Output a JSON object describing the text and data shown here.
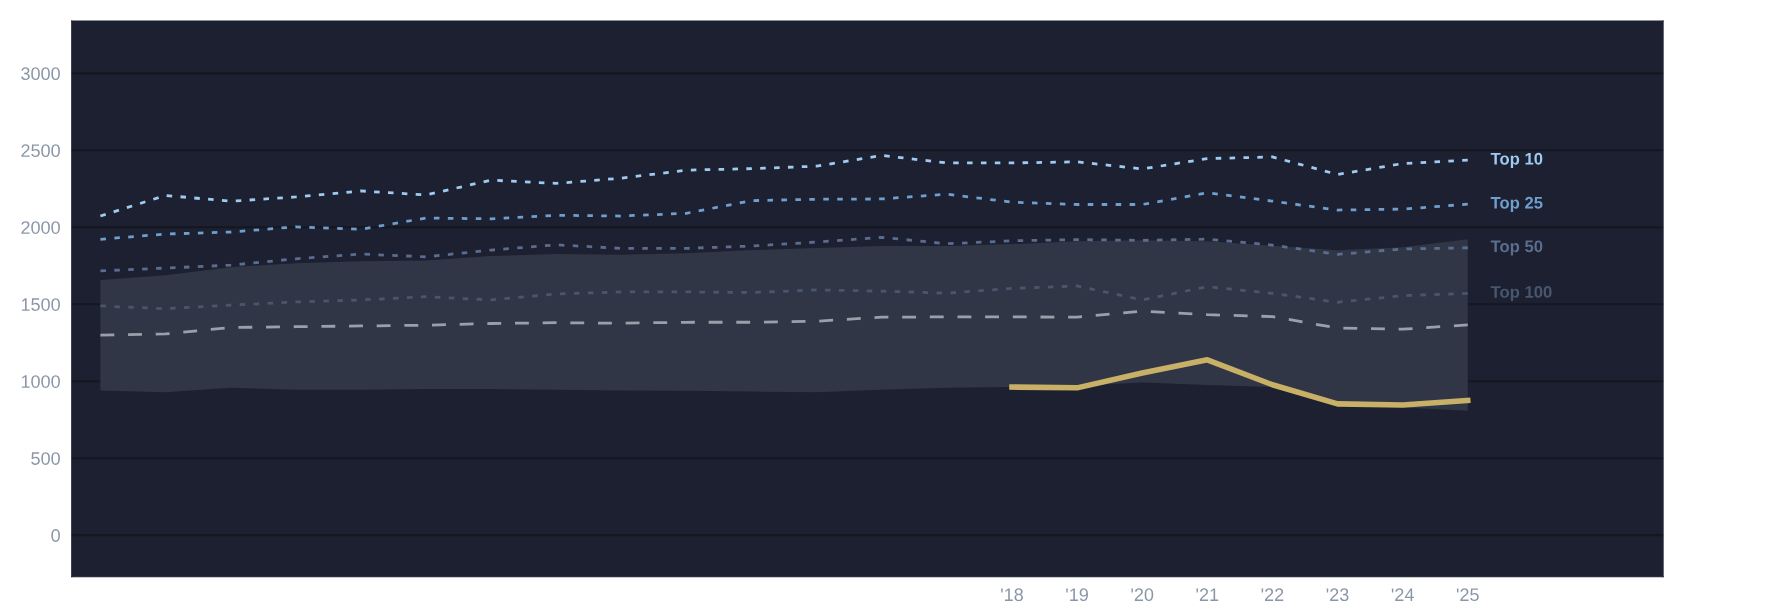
{
  "chart_data": {
    "type": "line",
    "x": [
      2004,
      2005,
      2006,
      2007,
      2008,
      2009,
      2010,
      2011,
      2012,
      2013,
      2014,
      2015,
      2016,
      2017,
      2018,
      2019,
      2020,
      2021,
      2022,
      2023,
      2024,
      2025
    ],
    "xlim": [
      2003.56,
      2028
    ],
    "xticks": [
      {
        "value": 2018,
        "label": "'18"
      },
      {
        "value": 2019,
        "label": "'19"
      },
      {
        "value": 2020,
        "label": "'20"
      },
      {
        "value": 2021,
        "label": "'21"
      },
      {
        "value": 2022,
        "label": "'22"
      },
      {
        "value": 2023,
        "label": "'23"
      },
      {
        "value": 2024,
        "label": "'24"
      },
      {
        "value": 2025,
        "label": "'25"
      }
    ],
    "ylim": [
      -270,
      3340
    ],
    "yticks": [
      0,
      500,
      1000,
      1500,
      2000,
      2500,
      3000
    ],
    "grid": "y",
    "series": [
      {
        "color": "#9aa0aa",
        "line_style": "dashed",
        "values": [
          1300,
          1307,
          1349,
          1354,
          1359,
          1364,
          1375,
          1380,
          1377,
          1383,
          1383,
          1390,
          1416,
          1418,
          1418,
          1416,
          1455,
          1432,
          1420,
          1345,
          1338,
          1366
        ],
        "lower": [
          939,
          929,
          957,
          944,
          944,
          949,
          949,
          944,
          939,
          938,
          933,
          929,
          944,
          957,
          962,
          970,
          991,
          975,
          962,
          870,
          830,
          808
        ],
        "upper": [
          1657,
          1689,
          1741,
          1767,
          1779,
          1785,
          1813,
          1826,
          1822,
          1831,
          1852,
          1865,
          1878,
          1878,
          1891,
          1909,
          1915,
          1909,
          1880,
          1850,
          1870,
          1923
        ]
      },
      {
        "name": "Top 100",
        "color": "#48566e",
        "line_style": "dotted",
        "values": [
          1489,
          1471,
          1494,
          1515,
          1528,
          1549,
          1528,
          1567,
          1580,
          1580,
          1576,
          1593,
          1585,
          1572,
          1603,
          1619,
          1528,
          1614,
          1571,
          1513,
          1556,
          1571
        ]
      },
      {
        "name": "Top 50",
        "color": "#5a6d8e",
        "line_style": "dotted",
        "values": [
          1717,
          1735,
          1754,
          1795,
          1826,
          1808,
          1852,
          1886,
          1863,
          1863,
          1878,
          1904,
          1935,
          1893,
          1912,
          1920,
          1915,
          1923,
          1884,
          1824,
          1859,
          1867
        ]
      },
      {
        "name": "Top 25",
        "color": "#6e9fcf",
        "line_style": "dotted",
        "values": [
          1922,
          1956,
          1969,
          2003,
          1987,
          2060,
          2055,
          2078,
          2073,
          2091,
          2173,
          2182,
          2184,
          2215,
          2163,
          2148,
          2148,
          2224,
          2170,
          2112,
          2118,
          2150
        ]
      },
      {
        "name": "Top 10",
        "color": "#9ecbf0",
        "line_style": "dotted",
        "values": [
          2073,
          2207,
          2169,
          2197,
          2236,
          2210,
          2306,
          2285,
          2319,
          2371,
          2381,
          2397,
          2467,
          2418,
          2418,
          2425,
          2379,
          2446,
          2457,
          2343,
          2414,
          2436
        ]
      },
      {
        "color": "#c8b067",
        "line_style": "solid",
        "x": [
          2018,
          2019,
          2020,
          2021,
          2022,
          2023,
          2024,
          2025
        ],
        "values": [
          962,
          957,
          1053,
          1139,
          977,
          853,
          846,
          875
        ]
      }
    ]
  }
}
